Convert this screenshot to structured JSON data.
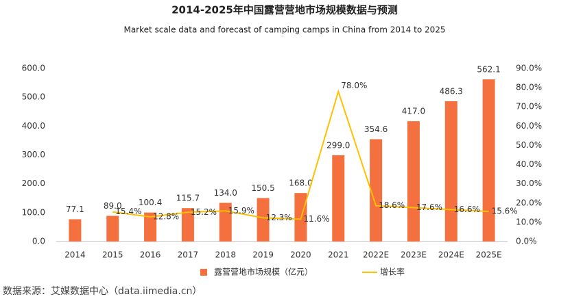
{
  "chart_data": {
    "type": "bar-line",
    "title": "2014-2025年中国露营营地市场规模数据与预测",
    "subtitle": "Market scale data and forecast of camping camps in China from 2014 to 2025",
    "categories": [
      "2014",
      "2015",
      "2016",
      "2017",
      "2018",
      "2019",
      "2020",
      "2021",
      "2022E",
      "2023E",
      "2024E",
      "2025E"
    ],
    "series": [
      {
        "name": "露营营地市场规模（亿元）",
        "type": "bar",
        "color": "#f4703e",
        "values": [
          77.1,
          89.0,
          100.4,
          115.7,
          134.0,
          150.5,
          168.0,
          299.0,
          354.6,
          417.0,
          486.3,
          562.1
        ],
        "value_labels": [
          "77.1",
          "89.0",
          "100.4",
          "115.7",
          "134.0",
          "150.5",
          "168.0",
          "299.0",
          "354.6",
          "417.0",
          "486.3",
          "562.1"
        ]
      },
      {
        "name": "增长率",
        "type": "line",
        "axis": "y2",
        "color": "#ffc000",
        "values": [
          null,
          15.4,
          12.8,
          15.2,
          15.9,
          12.3,
          11.6,
          78.0,
          18.6,
          17.6,
          16.6,
          15.6
        ],
        "value_labels": [
          null,
          "15.4%",
          "12.8%",
          "15.2%",
          "15.9%",
          "12.3%",
          "11.6%",
          "78.0%",
          "18.6%",
          "17.6%",
          "16.6%",
          "15.6%"
        ]
      }
    ],
    "ylim": [
      0,
      600
    ],
    "yticks": [
      {
        "value": 0,
        "label": "0.0"
      },
      {
        "value": 100,
        "label": "100.0"
      },
      {
        "value": 200,
        "label": "200.0"
      },
      {
        "value": 300,
        "label": "300.0"
      },
      {
        "value": 400,
        "label": "400.0"
      },
      {
        "value": 500,
        "label": "500.0"
      },
      {
        "value": 600,
        "label": "600.0"
      }
    ],
    "y2lim": [
      0,
      90
    ],
    "y2ticks": [
      {
        "value": 0,
        "label": "0.0%"
      },
      {
        "value": 10,
        "label": "10.0%"
      },
      {
        "value": 20,
        "label": "20.0%"
      },
      {
        "value": 30,
        "label": "30.0%"
      },
      {
        "value": 40,
        "label": "40.0%"
      },
      {
        "value": 50,
        "label": "50.0%"
      },
      {
        "value": 60,
        "label": "60.0%"
      },
      {
        "value": 70,
        "label": "70.0%"
      },
      {
        "value": 80,
        "label": "80.0%"
      },
      {
        "value": 90,
        "label": "90.0%"
      }
    ],
    "source": "数据来源：艾媒数据中心（data.iimedia.cn）"
  }
}
